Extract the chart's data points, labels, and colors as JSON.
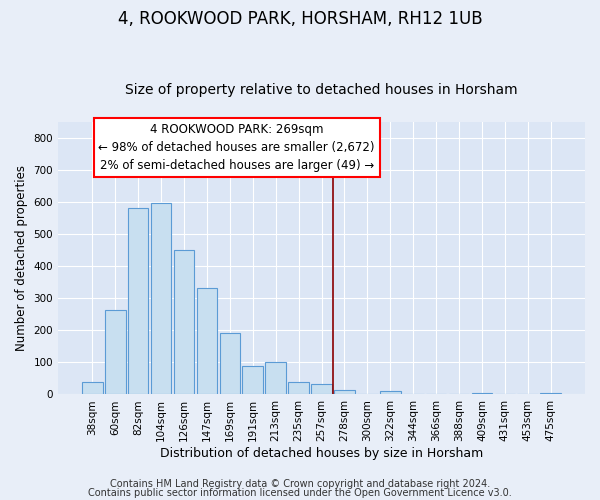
{
  "title": "4, ROOKWOOD PARK, HORSHAM, RH12 1UB",
  "subtitle": "Size of property relative to detached houses in Horsham",
  "xlabel": "Distribution of detached houses by size in Horsham",
  "ylabel": "Number of detached properties",
  "bar_labels": [
    "38sqm",
    "60sqm",
    "82sqm",
    "104sqm",
    "126sqm",
    "147sqm",
    "169sqm",
    "191sqm",
    "213sqm",
    "235sqm",
    "257sqm",
    "278sqm",
    "300sqm",
    "322sqm",
    "344sqm",
    "366sqm",
    "388sqm",
    "409sqm",
    "431sqm",
    "453sqm",
    "475sqm"
  ],
  "bar_heights": [
    40,
    262,
    580,
    598,
    450,
    333,
    193,
    90,
    100,
    38,
    32,
    13,
    0,
    12,
    0,
    0,
    0,
    4,
    0,
    0,
    4
  ],
  "bar_color": "#c8dff0",
  "bar_edge_color": "#5b9bd5",
  "ylim": [
    0,
    850
  ],
  "yticks": [
    0,
    100,
    200,
    300,
    400,
    500,
    600,
    700,
    800
  ],
  "annotation_title": "4 ROOKWOOD PARK: 269sqm",
  "annotation_line1": "← 98% of detached houses are smaller (2,672)",
  "annotation_line2": "2% of semi-detached houses are larger (49) →",
  "footer_line1": "Contains HM Land Registry data © Crown copyright and database right 2024.",
  "footer_line2": "Contains public sector information licensed under the Open Government Licence v3.0.",
  "background_color": "#e8eef8",
  "plot_bg_color": "#dce6f5",
  "grid_color": "#ffffff",
  "title_fontsize": 12,
  "subtitle_fontsize": 10,
  "xlabel_fontsize": 9,
  "ylabel_fontsize": 8.5,
  "tick_fontsize": 7.5,
  "annotation_fontsize": 8.5,
  "footer_fontsize": 7
}
